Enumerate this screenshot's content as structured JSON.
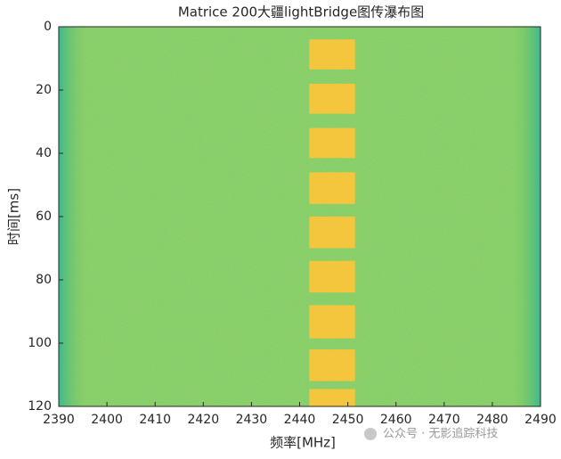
{
  "chart_data": {
    "type": "waterfall",
    "title": "Matrice 200大疆lightBridge图传瀑布图",
    "x_label": "频率[MHz]",
    "y_label": "时间[ms]",
    "xlim": [
      2390,
      2490
    ],
    "ylim": [
      0,
      120
    ],
    "y_inverted": true,
    "xticks": [
      2390,
      2400,
      2410,
      2420,
      2430,
      2440,
      2450,
      2460,
      2470,
      2480,
      2490
    ],
    "yticks": [
      0,
      20,
      40,
      60,
      80,
      100,
      120
    ],
    "background_color": "#82c95c",
    "edge_color": "#3db98e",
    "burst_color": "#f4c63e",
    "bursts": [
      {
        "x0": 2442,
        "x1": 2451.5,
        "y0": 4,
        "y1": 13.5
      },
      {
        "x0": 2442,
        "x1": 2451.5,
        "y0": 18,
        "y1": 27.5
      },
      {
        "x0": 2442,
        "x1": 2451.5,
        "y0": 32,
        "y1": 41.5
      },
      {
        "x0": 2442,
        "x1": 2451.5,
        "y0": 46,
        "y1": 56
      },
      {
        "x0": 2442,
        "x1": 2451.5,
        "y0": 60,
        "y1": 70
      },
      {
        "x0": 2442,
        "x1": 2451.5,
        "y0": 74,
        "y1": 84
      },
      {
        "x0": 2442,
        "x1": 2451.5,
        "y0": 88,
        "y1": 98.5
      },
      {
        "x0": 2442,
        "x1": 2451.5,
        "y0": 102,
        "y1": 112
      },
      {
        "x0": 2442,
        "x1": 2451.5,
        "y0": 114.5,
        "y1": 120
      }
    ],
    "watermark": "公众号 · 无影追踪科技"
  }
}
